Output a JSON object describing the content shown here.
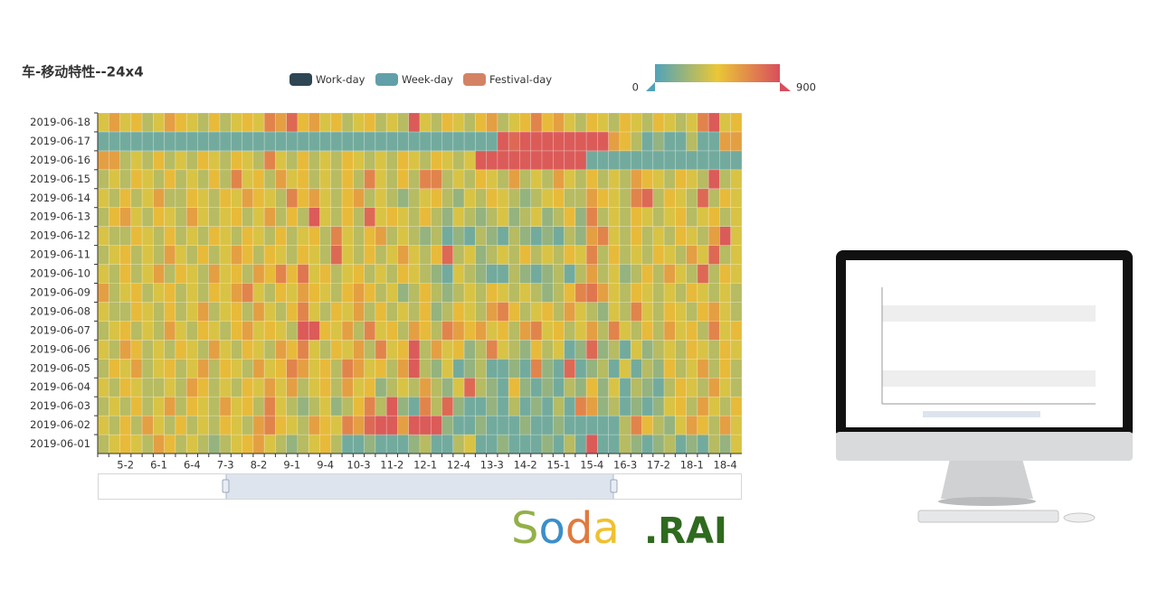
{
  "chart_data": {
    "type": "heatmap",
    "title": "车-移动特性--24x4",
    "legend": [
      {
        "name": "Work-day",
        "color": "#2f4554"
      },
      {
        "name": "Week-day",
        "color": "#61a0a8"
      },
      {
        "name": "Festival-day",
        "color": "#d48265"
      }
    ],
    "visual_map": {
      "min": 0,
      "max": 900,
      "colors": [
        "#50a3ba",
        "#eac736",
        "#d94e5d"
      ]
    },
    "x": [
      null,
      null,
      "5-2",
      null,
      null,
      "6-1",
      null,
      null,
      "6-4",
      null,
      null,
      "7-3",
      null,
      null,
      "8-2",
      null,
      null,
      "9-1",
      null,
      null,
      "9-4",
      null,
      null,
      "10-3",
      null,
      null,
      "11-2",
      null,
      null,
      "12-1",
      null,
      null,
      "12-4",
      null,
      null,
      "13-3",
      null,
      null,
      "14-2",
      null,
      null,
      "15-1",
      null,
      null,
      "15-4",
      null,
      null,
      "16-3",
      null,
      null,
      "17-2",
      null,
      null,
      "18-1",
      null,
      null,
      "18-4",
      null
    ],
    "categories": [
      "2019-06-01",
      "2019-06-02",
      "2019-06-03",
      "2019-06-04",
      "2019-06-05",
      "2019-06-06",
      "2019-06-07",
      "2019-06-08",
      "2019-06-09",
      "2019-06-10",
      "2019-06-11",
      "2019-06-12",
      "2019-06-13",
      "2019-06-14",
      "2019-06-15",
      "2019-06-16",
      "2019-06-17",
      "2019-06-18"
    ],
    "values": [
      [
        300,
        400,
        500,
        400,
        300,
        600,
        500,
        300,
        400,
        300,
        200,
        300,
        400,
        500,
        600,
        400,
        300,
        200,
        300,
        400,
        500,
        300,
        100,
        100,
        200,
        100,
        100,
        100,
        200,
        300,
        100,
        100,
        300,
        400,
        100,
        100,
        200,
        100,
        100,
        100,
        200,
        100,
        300,
        100,
        850,
        100,
        100,
        300,
        200,
        100,
        200,
        300,
        100,
        200,
        100,
        300,
        200,
        400
      ],
      [
        400,
        300,
        500,
        300,
        600,
        400,
        300,
        500,
        300,
        400,
        300,
        500,
        400,
        300,
        600,
        700,
        500,
        400,
        300,
        600,
        500,
        400,
        700,
        600,
        800,
        850,
        850,
        600,
        850,
        850,
        850,
        200,
        100,
        100,
        200,
        100,
        100,
        100,
        200,
        100,
        100,
        200,
        100,
        100,
        100,
        100,
        100,
        300,
        700,
        500,
        300,
        200,
        400,
        600,
        500,
        300,
        600,
        400
      ],
      [
        300,
        400,
        300,
        500,
        300,
        400,
        600,
        300,
        500,
        400,
        300,
        600,
        400,
        500,
        300,
        700,
        400,
        300,
        200,
        300,
        400,
        200,
        300,
        500,
        700,
        300,
        850,
        200,
        100,
        700,
        300,
        800,
        200,
        100,
        100,
        200,
        100,
        300,
        100,
        200,
        100,
        300,
        100,
        700,
        600,
        200,
        300,
        100,
        200,
        100,
        200,
        400,
        500,
        300,
        600,
        400,
        300,
        500
      ],
      [
        400,
        300,
        500,
        400,
        300,
        300,
        400,
        300,
        600,
        500,
        300,
        400,
        300,
        500,
        400,
        600,
        400,
        600,
        300,
        400,
        500,
        300,
        600,
        400,
        500,
        200,
        300,
        400,
        300,
        600,
        300,
        200,
        400,
        800,
        300,
        200,
        100,
        500,
        200,
        100,
        200,
        100,
        300,
        200,
        500,
        200,
        400,
        100,
        300,
        200,
        100,
        300,
        500,
        400,
        300,
        600,
        400,
        300
      ],
      [
        300,
        500,
        400,
        600,
        300,
        400,
        500,
        300,
        400,
        600,
        300,
        500,
        400,
        300,
        600,
        400,
        500,
        700,
        600,
        400,
        500,
        300,
        700,
        600,
        400,
        500,
        300,
        600,
        850,
        300,
        200,
        400,
        100,
        200,
        300,
        100,
        100,
        200,
        100,
        700,
        200,
        100,
        800,
        100,
        200,
        300,
        100,
        400,
        100,
        300,
        200,
        500,
        300,
        400,
        600,
        300,
        500,
        300
      ],
      [
        400,
        300,
        600,
        500,
        300,
        400,
        300,
        500,
        400,
        300,
        600,
        400,
        300,
        500,
        400,
        300,
        600,
        500,
        700,
        400,
        300,
        500,
        400,
        600,
        300,
        700,
        400,
        500,
        850,
        300,
        600,
        400,
        500,
        200,
        300,
        700,
        400,
        300,
        200,
        500,
        300,
        400,
        100,
        200,
        800,
        200,
        300,
        100,
        400,
        200,
        300,
        400,
        300,
        500,
        400,
        300,
        500,
        400
      ],
      [
        300,
        400,
        500,
        300,
        400,
        300,
        600,
        400,
        300,
        500,
        400,
        300,
        500,
        600,
        400,
        500,
        400,
        300,
        850,
        850,
        500,
        400,
        600,
        300,
        700,
        400,
        500,
        300,
        600,
        500,
        300,
        700,
        600,
        500,
        600,
        400,
        500,
        300,
        600,
        700,
        400,
        500,
        300,
        400,
        600,
        300,
        700,
        400,
        300,
        500,
        300,
        600,
        400,
        500,
        300,
        700,
        400,
        500
      ],
      [
        400,
        300,
        300,
        500,
        400,
        300,
        500,
        300,
        400,
        600,
        300,
        400,
        500,
        300,
        600,
        400,
        300,
        500,
        700,
        400,
        300,
        500,
        400,
        600,
        300,
        500,
        300,
        400,
        300,
        500,
        200,
        300,
        500,
        400,
        300,
        600,
        700,
        500,
        300,
        400,
        500,
        300,
        600,
        400,
        300,
        200,
        400,
        300,
        700,
        400,
        300,
        500,
        400,
        300,
        500,
        600,
        400,
        300
      ],
      [
        600,
        300,
        400,
        500,
        300,
        400,
        500,
        300,
        400,
        300,
        500,
        400,
        600,
        700,
        400,
        300,
        500,
        400,
        600,
        500,
        400,
        300,
        500,
        600,
        500,
        300,
        400,
        200,
        300,
        500,
        300,
        200,
        300,
        400,
        300,
        500,
        400,
        300,
        400,
        300,
        200,
        300,
        500,
        700,
        750,
        600,
        400,
        300,
        500,
        400,
        300,
        400,
        300,
        500,
        400,
        300,
        400,
        300
      ],
      [
        400,
        300,
        500,
        300,
        400,
        600,
        300,
        500,
        400,
        300,
        600,
        400,
        500,
        300,
        600,
        500,
        700,
        500,
        750,
        400,
        500,
        300,
        400,
        500,
        300,
        400,
        300,
        500,
        400,
        300,
        200,
        100,
        400,
        300,
        200,
        100,
        100,
        300,
        200,
        100,
        200,
        300,
        100,
        300,
        600,
        300,
        400,
        200,
        300,
        500,
        300,
        600,
        400,
        300,
        800,
        300,
        500,
        400
      ],
      [
        300,
        400,
        500,
        300,
        400,
        300,
        600,
        400,
        300,
        500,
        300,
        400,
        600,
        500,
        300,
        500,
        400,
        300,
        500,
        400,
        300,
        800,
        400,
        300,
        500,
        300,
        400,
        600,
        400,
        300,
        500,
        800,
        300,
        400,
        200,
        300,
        400,
        300,
        500,
        300,
        400,
        300,
        500,
        400,
        700,
        300,
        500,
        300,
        400,
        300,
        500,
        400,
        300,
        600,
        400,
        800,
        300,
        400
      ],
      [
        400,
        300,
        300,
        500,
        400,
        300,
        500,
        300,
        400,
        300,
        500,
        400,
        300,
        500,
        400,
        300,
        500,
        300,
        400,
        500,
        300,
        700,
        400,
        300,
        500,
        600,
        300,
        400,
        300,
        200,
        300,
        100,
        200,
        100,
        300,
        200,
        100,
        300,
        200,
        100,
        200,
        100,
        300,
        200,
        600,
        700,
        400,
        300,
        500,
        300,
        400,
        300,
        500,
        400,
        300,
        600,
        850,
        400
      ],
      [
        300,
        500,
        600,
        400,
        300,
        500,
        400,
        300,
        600,
        400,
        300,
        400,
        500,
        300,
        400,
        600,
        300,
        500,
        300,
        850,
        400,
        300,
        500,
        300,
        800,
        400,
        500,
        400,
        300,
        500,
        300,
        200,
        400,
        300,
        200,
        300,
        400,
        200,
        300,
        400,
        200,
        300,
        500,
        200,
        700,
        300,
        400,
        300,
        500,
        400,
        300,
        400,
        500,
        300,
        400,
        500,
        300,
        400
      ],
      [
        400,
        300,
        500,
        300,
        400,
        600,
        300,
        300,
        500,
        400,
        300,
        500,
        400,
        600,
        500,
        400,
        300,
        700,
        500,
        600,
        400,
        300,
        500,
        600,
        300,
        400,
        300,
        200,
        300,
        400,
        500,
        300,
        200,
        400,
        300,
        500,
        400,
        300,
        200,
        300,
        400,
        500,
        300,
        300,
        600,
        500,
        400,
        300,
        700,
        800,
        300,
        500,
        400,
        300,
        800,
        300,
        500,
        400
      ],
      [
        300,
        400,
        300,
        500,
        400,
        300,
        500,
        300,
        400,
        300,
        500,
        300,
        700,
        400,
        500,
        300,
        600,
        400,
        500,
        300,
        400,
        300,
        500,
        300,
        700,
        400,
        300,
        500,
        300,
        700,
        700,
        300,
        400,
        300,
        500,
        400,
        300,
        600,
        300,
        400,
        300,
        600,
        400,
        300,
        500,
        300,
        400,
        300,
        600,
        500,
        400,
        300,
        500,
        400,
        300,
        850,
        300,
        400
      ],
      [
        600,
        600,
        300,
        400,
        300,
        500,
        300,
        400,
        300,
        500,
        400,
        300,
        500,
        400,
        300,
        700,
        400,
        300,
        500,
        300,
        400,
        300,
        500,
        400,
        300,
        400,
        300,
        500,
        400,
        300,
        500,
        400,
        300,
        400,
        850,
        850,
        850,
        850,
        850,
        850,
        850,
        850,
        850,
        850,
        100,
        100,
        100,
        100,
        100,
        100,
        100,
        100,
        100,
        100,
        100,
        100,
        100,
        100
      ],
      [
        100,
        100,
        100,
        100,
        100,
        100,
        100,
        100,
        100,
        100,
        100,
        100,
        100,
        100,
        100,
        100,
        100,
        100,
        100,
        100,
        100,
        100,
        100,
        100,
        100,
        100,
        100,
        100,
        100,
        100,
        100,
        100,
        100,
        100,
        100,
        100,
        850,
        800,
        850,
        850,
        850,
        850,
        850,
        850,
        850,
        850,
        600,
        500,
        300,
        100,
        200,
        100,
        100,
        300,
        100,
        100,
        600,
        600
      ],
      [
        400,
        600,
        400,
        500,
        300,
        400,
        600,
        500,
        400,
        300,
        500,
        300,
        400,
        500,
        400,
        700,
        600,
        800,
        500,
        600,
        400,
        500,
        300,
        400,
        500,
        300,
        400,
        300,
        850,
        400,
        300,
        500,
        400,
        300,
        500,
        600,
        300,
        400,
        500,
        700,
        500,
        600,
        400,
        300,
        500,
        400,
        300,
        500,
        400,
        300,
        500,
        400,
        300,
        400,
        700,
        850,
        400,
        500
      ]
    ]
  },
  "logo": {
    "letters": [
      "S",
      "o",
      "d",
      "a"
    ],
    "suffix": ".RAI"
  }
}
